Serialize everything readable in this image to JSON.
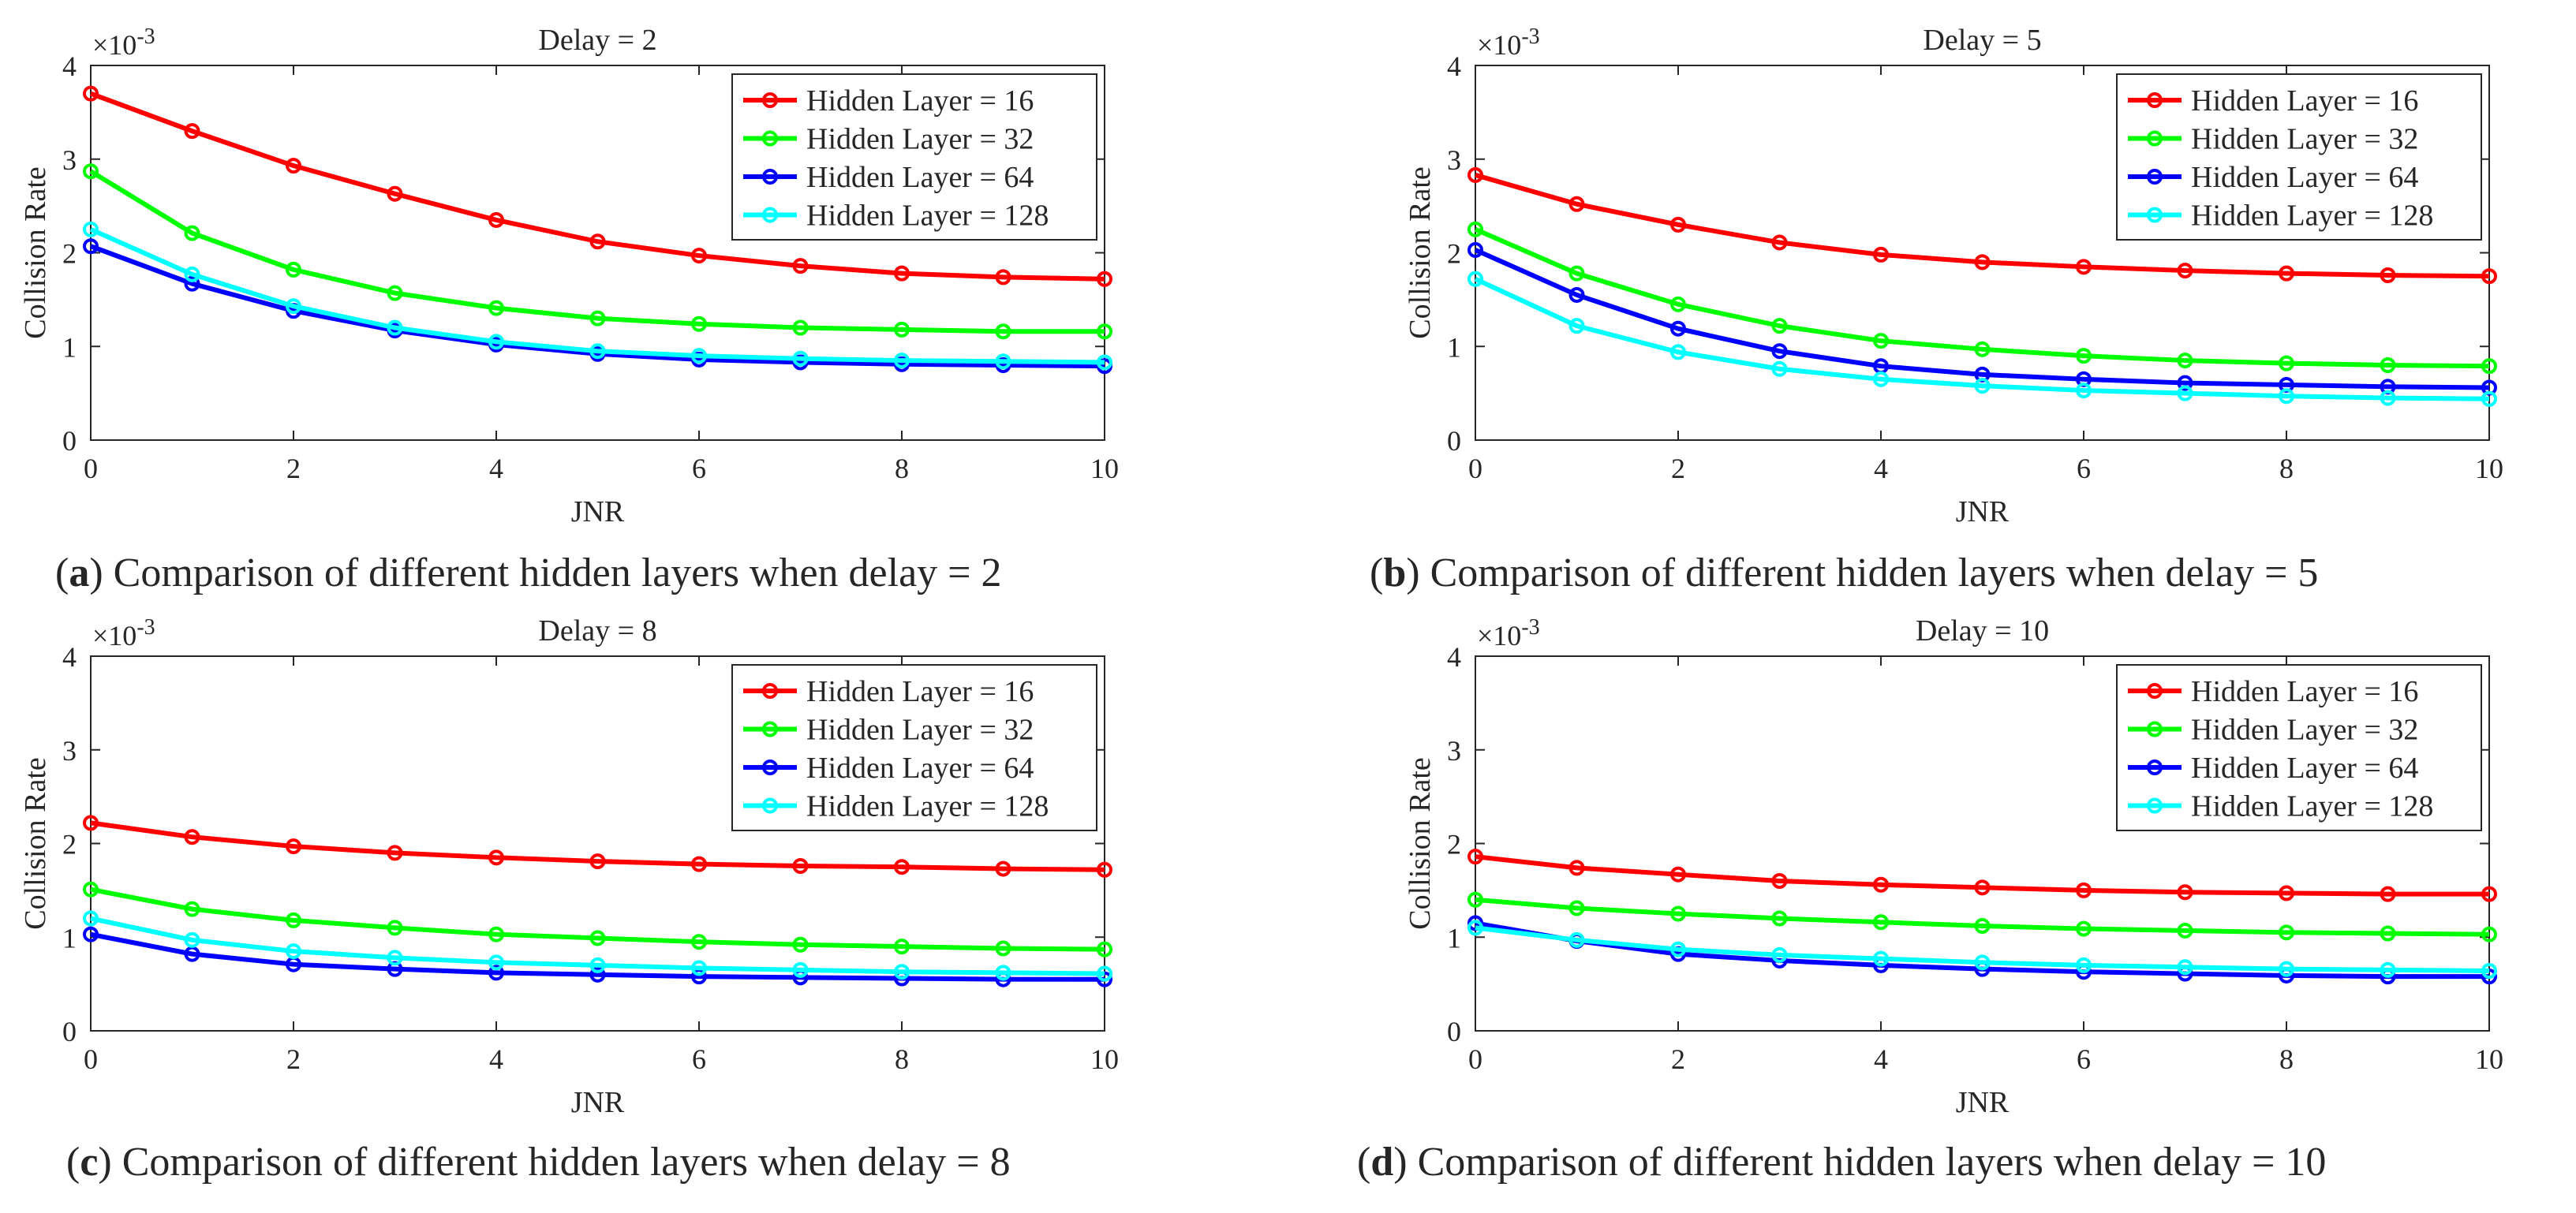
{
  "chart_data": [
    {
      "type": "line",
      "panel": "a",
      "title": "Delay =  2",
      "xlabel": "JNR",
      "ylabel": "Collision Rate",
      "exponent_label": "×10",
      "exponent": "-3",
      "xlim": [
        0,
        10
      ],
      "ylim": [
        0,
        4
      ],
      "x_ticks": [
        "0",
        "2",
        "4",
        "6",
        "8",
        "10"
      ],
      "y_ticks": [
        "0",
        "1",
        "2",
        "3",
        "4"
      ],
      "x": [
        0,
        1,
        2,
        3,
        4,
        5,
        6,
        7,
        8,
        9,
        10
      ],
      "legend_position": "top-right",
      "caption_label": "a",
      "caption_text": "Comparison of different hidden layers when delay = 2",
      "series": [
        {
          "name": "Hidden Layer =  16",
          "color": "#ff0000",
          "values": [
            3.7,
            3.3,
            2.93,
            2.63,
            2.35,
            2.12,
            1.97,
            1.86,
            1.78,
            1.74,
            1.72
          ]
        },
        {
          "name": "Hidden Layer =  32",
          "color": "#00ff00",
          "values": [
            2.87,
            2.21,
            1.82,
            1.57,
            1.41,
            1.3,
            1.24,
            1.2,
            1.18,
            1.16,
            1.16
          ]
        },
        {
          "name": "Hidden Layer =  64",
          "color": "#0000ff",
          "values": [
            2.07,
            1.67,
            1.38,
            1.17,
            1.02,
            0.92,
            0.86,
            0.83,
            0.81,
            0.8,
            0.79
          ]
        },
        {
          "name": "Hidden Layer = 128",
          "color": "#00ffff",
          "values": [
            2.25,
            1.77,
            1.43,
            1.2,
            1.05,
            0.95,
            0.9,
            0.87,
            0.85,
            0.84,
            0.83
          ]
        }
      ]
    },
    {
      "type": "line",
      "panel": "b",
      "title": "Delay =  5",
      "xlabel": "JNR",
      "ylabel": "Collision Rate",
      "exponent_label": "×10",
      "exponent": "-3",
      "xlim": [
        0,
        10
      ],
      "ylim": [
        0,
        4
      ],
      "x_ticks": [
        "0",
        "2",
        "4",
        "6",
        "8",
        "10"
      ],
      "y_ticks": [
        "0",
        "1",
        "2",
        "3",
        "4"
      ],
      "x": [
        0,
        1,
        2,
        3,
        4,
        5,
        6,
        7,
        8,
        9,
        10
      ],
      "legend_position": "top-right",
      "caption_label": "b",
      "caption_text": "Comparison of different hidden layers when delay = 5",
      "series": [
        {
          "name": "Hidden Layer =  16",
          "color": "#ff0000",
          "values": [
            2.83,
            2.52,
            2.3,
            2.11,
            1.98,
            1.9,
            1.85,
            1.81,
            1.78,
            1.76,
            1.75
          ]
        },
        {
          "name": "Hidden Layer =  32",
          "color": "#00ff00",
          "values": [
            2.25,
            1.78,
            1.45,
            1.22,
            1.06,
            0.97,
            0.9,
            0.85,
            0.82,
            0.8,
            0.79
          ]
        },
        {
          "name": "Hidden Layer =  64",
          "color": "#0000ff",
          "values": [
            2.03,
            1.55,
            1.19,
            0.95,
            0.79,
            0.7,
            0.65,
            0.61,
            0.59,
            0.57,
            0.56
          ]
        },
        {
          "name": "Hidden Layer = 128",
          "color": "#00ffff",
          "values": [
            1.72,
            1.22,
            0.94,
            0.76,
            0.65,
            0.58,
            0.53,
            0.5,
            0.47,
            0.45,
            0.44
          ]
        }
      ]
    },
    {
      "type": "line",
      "panel": "c",
      "title": "Delay =  8",
      "xlabel": "JNR",
      "ylabel": "Collision Rate",
      "exponent_label": "×10",
      "exponent": "-3",
      "xlim": [
        0,
        10
      ],
      "ylim": [
        0,
        4
      ],
      "x_ticks": [
        "0",
        "2",
        "4",
        "6",
        "8",
        "10"
      ],
      "y_ticks": [
        "0",
        "1",
        "2",
        "3",
        "4"
      ],
      "x": [
        0,
        1,
        2,
        3,
        4,
        5,
        6,
        7,
        8,
        9,
        10
      ],
      "legend_position": "top-right",
      "caption_label": "c",
      "caption_text": "Comparison of different hidden layers when delay = 8",
      "series": [
        {
          "name": "Hidden Layer =  16",
          "color": "#ff0000",
          "values": [
            2.22,
            2.07,
            1.97,
            1.9,
            1.85,
            1.81,
            1.78,
            1.76,
            1.75,
            1.73,
            1.72
          ]
        },
        {
          "name": "Hidden Layer =  32",
          "color": "#00ff00",
          "values": [
            1.51,
            1.3,
            1.18,
            1.1,
            1.03,
            0.99,
            0.95,
            0.92,
            0.9,
            0.88,
            0.87
          ]
        },
        {
          "name": "Hidden Layer =  64",
          "color": "#0000ff",
          "values": [
            1.03,
            0.82,
            0.71,
            0.66,
            0.62,
            0.6,
            0.58,
            0.57,
            0.56,
            0.55,
            0.55
          ]
        },
        {
          "name": "Hidden Layer = 128",
          "color": "#00ffff",
          "values": [
            1.2,
            0.97,
            0.85,
            0.78,
            0.73,
            0.7,
            0.67,
            0.65,
            0.63,
            0.62,
            0.61
          ]
        }
      ]
    },
    {
      "type": "line",
      "panel": "d",
      "title": "Delay = 10",
      "xlabel": "JNR",
      "ylabel": "Collision Rate",
      "exponent_label": "×10",
      "exponent": "-3",
      "xlim": [
        0,
        10
      ],
      "ylim": [
        0,
        4
      ],
      "x_ticks": [
        "0",
        "2",
        "4",
        "6",
        "8",
        "10"
      ],
      "y_ticks": [
        "0",
        "1",
        "2",
        "3",
        "4"
      ],
      "x": [
        0,
        1,
        2,
        3,
        4,
        5,
        6,
        7,
        8,
        9,
        10
      ],
      "legend_position": "top-right",
      "caption_label": "d",
      "caption_text": "Comparison of different hidden layers when delay = 10",
      "series": [
        {
          "name": "Hidden Layer =  16",
          "color": "#ff0000",
          "values": [
            1.86,
            1.74,
            1.67,
            1.6,
            1.56,
            1.53,
            1.5,
            1.48,
            1.47,
            1.46,
            1.46
          ]
        },
        {
          "name": "Hidden Layer =  32",
          "color": "#00ff00",
          "values": [
            1.4,
            1.31,
            1.25,
            1.2,
            1.16,
            1.12,
            1.09,
            1.07,
            1.05,
            1.04,
            1.03
          ]
        },
        {
          "name": "Hidden Layer =  64",
          "color": "#0000ff",
          "values": [
            1.15,
            0.96,
            0.82,
            0.75,
            0.7,
            0.66,
            0.63,
            0.61,
            0.59,
            0.58,
            0.58
          ]
        },
        {
          "name": "Hidden Layer = 128",
          "color": "#00ffff",
          "values": [
            1.1,
            0.97,
            0.87,
            0.81,
            0.77,
            0.73,
            0.7,
            0.68,
            0.66,
            0.65,
            0.64
          ]
        }
      ]
    }
  ]
}
